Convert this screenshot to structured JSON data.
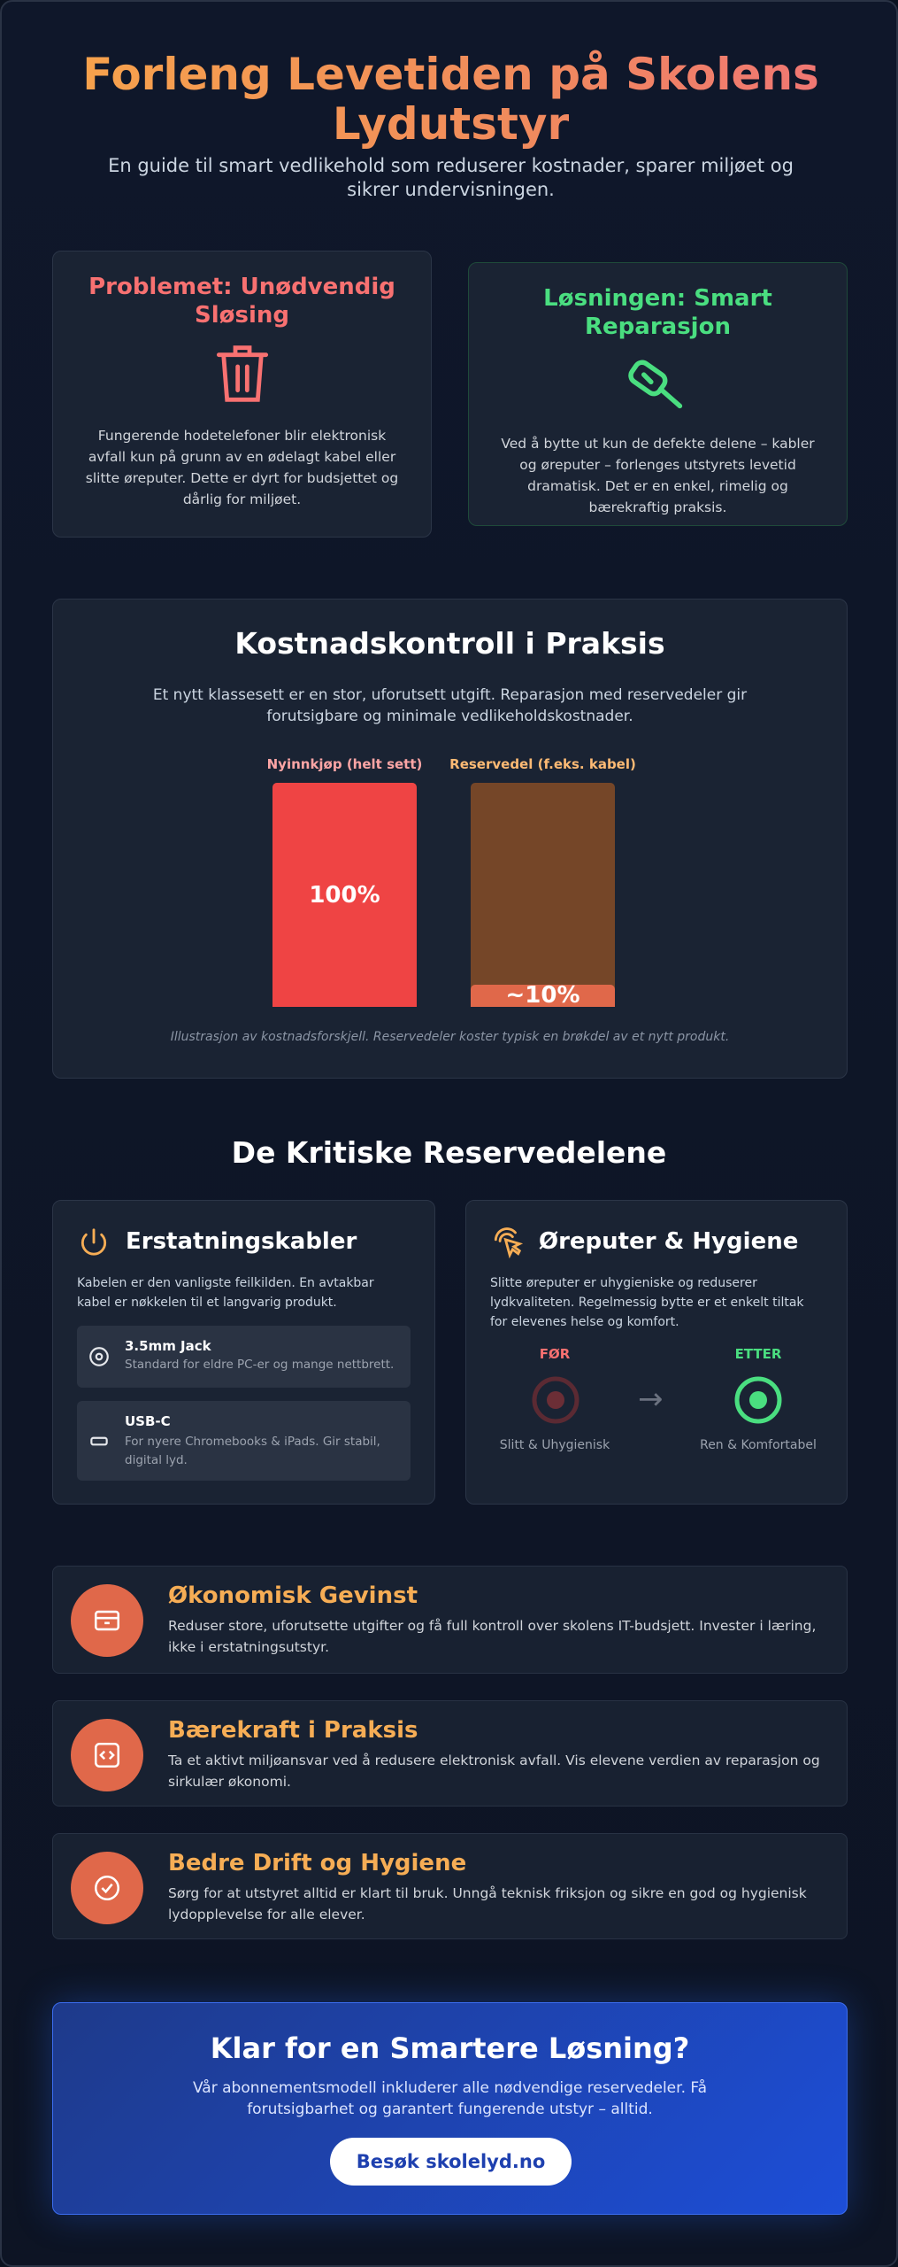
{
  "header": {
    "title": "Forleng Levetiden på Skolens Lydutstyr",
    "subtitle": "En guide til smart vedlikehold som reduserer kostnader, sparer miljøet og sikrer undervisningen."
  },
  "problem": {
    "title": "Problemet: Unødvendig Sløsing",
    "text": "Fungerende hodetelefoner blir elektronisk avfall kun på grunn av en ødelagt kabel eller slitte øreputer. Dette er dyrt for budsjettet og dårlig for miljøet."
  },
  "solution": {
    "title": "Løsningen: Smart Reparasjon",
    "text": "Ved å bytte ut kun de defekte delene – kabler og øreputer – forlenges utstyrets levetid dramatisk. Det er en enkel, rimelig og bærekraftig praksis."
  },
  "chart_data": {
    "type": "bar",
    "title": "Kostnadskontroll i Praksis",
    "subtitle": "Et nytt klassesett er en stor, uforutsett utgift. Reparasjon med reservedeler gir forutsigbare og minimale vedlikeholdskostnader.",
    "categories": [
      "Nyinnkjøp (helt sett)",
      "Reservedel (f.eks. kabel)"
    ],
    "values": [
      100,
      10
    ],
    "value_labels": [
      "100%",
      "~10%"
    ],
    "colors": [
      "#ef4444",
      "#e0684a"
    ],
    "label_colors": [
      "#fca5a5",
      "#fdba74"
    ],
    "ylim": [
      0,
      100
    ],
    "caption": "Illustrasjon av kostnadsforskjell. Reservedeler koster typisk en brøkdel av et nytt produkt."
  },
  "parts": {
    "title": "De Kritiske Reservedelene",
    "cables": {
      "title": "Erstatningskabler",
      "text": "Kabelen er den vanligste feilkilden. En avtakbar kabel er nøkkelen til et langvarig produkt.",
      "items": [
        {
          "name": "3.5mm Jack",
          "desc": "Standard for eldre PC-er og mange nettbrett."
        },
        {
          "name": "USB-C",
          "desc": "For nyere Chromebooks & iPads. Gir stabil, digital lyd."
        }
      ]
    },
    "earpads": {
      "title": "Øreputer & Hygiene",
      "text": "Slitte øreputer er uhygieniske og reduserer lydkvaliteten. Regelmessig bytte er et enkelt tiltak for elevenes helse og komfort.",
      "before": {
        "label": "FØR",
        "caption": "Slitt & Uhygienisk"
      },
      "after": {
        "label": "ETTER",
        "caption": "Ren & Komfortabel"
      }
    }
  },
  "benefits": [
    {
      "title": "Økonomisk Gevinst",
      "text": "Reduser store, uforutsette utgifter og få full kontroll over skolens IT-budsjett. Invester i læring, ikke i erstatningsutstyr."
    },
    {
      "title": "Bærekraft i Praksis",
      "text": "Ta et aktivt miljøansvar ved å redusere elektronisk avfall. Vis elevene verdien av reparasjon og sirkulær økonomi."
    },
    {
      "title": "Bedre Drift og Hygiene",
      "text": "Sørg for at utstyret alltid er klart til bruk. Unngå teknisk friksjon og sikre en god og hygienisk lydopplevelse for alle elever."
    }
  ],
  "cta": {
    "title": "Klar for en Smartere Løsning?",
    "text": "Vår abonnementsmodell inkluderer alle nødvendige reservedeler. Få forutsigbarhet og garantert fungerende utstyr – alltid.",
    "button": "Besøk skolelyd.no"
  }
}
